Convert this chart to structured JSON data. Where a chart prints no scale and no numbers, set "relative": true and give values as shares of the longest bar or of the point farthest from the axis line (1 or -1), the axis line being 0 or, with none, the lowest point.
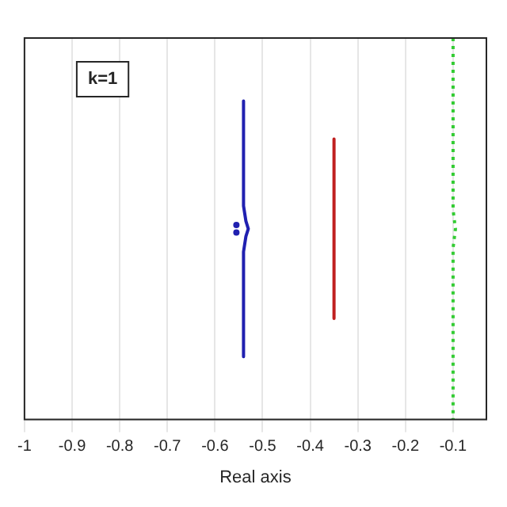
{
  "chart_data": {
    "type": "line",
    "relative": true,
    "xlabel": "Real axis",
    "annotations": [
      "k=1"
    ],
    "xlim": [
      -1,
      -0.03
    ],
    "xticks": [
      -1,
      -0.9,
      -0.8,
      -0.7,
      -0.6,
      -0.5,
      -0.4,
      -0.3,
      -0.2,
      -0.1
    ],
    "grid": "x",
    "legend": false,
    "series": [
      {
        "color": "#2020b0",
        "x": [
          -0.54,
          -0.54,
          -0.535,
          -0.53,
          -0.535,
          -0.54,
          -0.54
        ],
        "values": [
          0.835,
          0.56,
          0.52,
          0.5,
          0.48,
          0.44,
          0.165
        ]
      },
      {
        "type": "scatter",
        "marker": "circle",
        "color": "#2020b0",
        "x": [
          -0.555,
          -0.555
        ],
        "values": [
          0.51,
          0.49
        ]
      },
      {
        "color": "#c02020",
        "x": [
          -0.35,
          -0.35,
          -0.35
        ],
        "values": [
          0.735,
          0.5,
          0.265
        ]
      },
      {
        "color": "#33cc33",
        "line_style": "dotted",
        "x": [
          -0.1,
          -0.1,
          -0.095,
          -0.1,
          -0.1
        ],
        "values": [
          1,
          0.55,
          0.5,
          0.45,
          0
        ]
      }
    ]
  }
}
